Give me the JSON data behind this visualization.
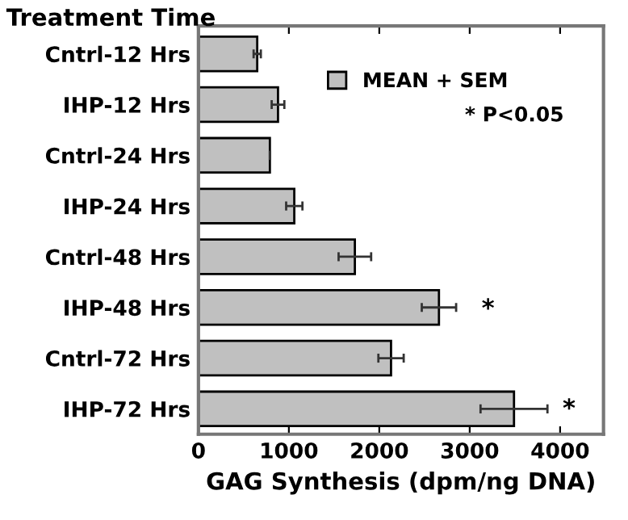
{
  "chart_data": {
    "type": "bar",
    "orientation": "horizontal",
    "ylabel": "Treatment Time",
    "xlabel": "GAG Synthesis (dpm/ng DNA)",
    "categories": [
      "Cntrl-12 Hrs",
      "IHP-12 Hrs",
      "Cntrl-24 Hrs",
      "IHP-24 Hrs",
      "Cntrl-48 Hrs",
      "IHP-48 Hrs",
      "Cntrl-72 Hrs",
      "IHP-72 Hrs"
    ],
    "series": [
      {
        "name": "MEAN + SEM",
        "color": "#c0c0c0",
        "values": [
          650,
          880,
          790,
          1060,
          1730,
          2660,
          2130,
          3490
        ],
        "errors": [
          40,
          70,
          null,
          90,
          180,
          190,
          140,
          370
        ]
      }
    ],
    "xlim": [
      0,
      4480
    ],
    "xticks": [
      0,
      1000,
      2000,
      3000,
      4000
    ],
    "legend": "top right",
    "grid": false,
    "annotations": [
      "*",
      "*",
      "* P<0.05"
    ]
  }
}
